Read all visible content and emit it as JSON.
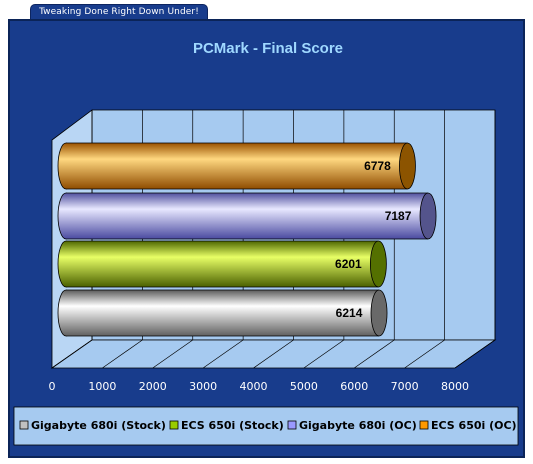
{
  "banner": {
    "text": "Tweaking Done Right Down Under!"
  },
  "chart_data": {
    "type": "bar",
    "orientation": "horizontal",
    "style": "3d-cylinder",
    "title": "PCMark - Final Score",
    "xlabel": "",
    "ylabel": "",
    "xlim": [
      0,
      8000
    ],
    "x_ticks": [
      0,
      1000,
      2000,
      3000,
      4000,
      5000,
      6000,
      7000,
      8000
    ],
    "grid": true,
    "legend_position": "bottom",
    "series": [
      {
        "name": "Gigabyte 680i (Stock)",
        "value": 6214,
        "color": "#c0c0c0"
      },
      {
        "name": "ECS 650i (Stock)",
        "value": 6201,
        "color": "#99cc00"
      },
      {
        "name": "Gigabyte 680i (OC)",
        "value": 7187,
        "color": "#9999ff"
      },
      {
        "name": "ECS 650i (OC)",
        "value": 6778,
        "color": "#ff9900"
      }
    ],
    "colors": {
      "background": "#183c8c",
      "plot_wall": "#a6caf0",
      "plot_floor": "#a6caf0",
      "grid": "#2a4aa0"
    }
  }
}
